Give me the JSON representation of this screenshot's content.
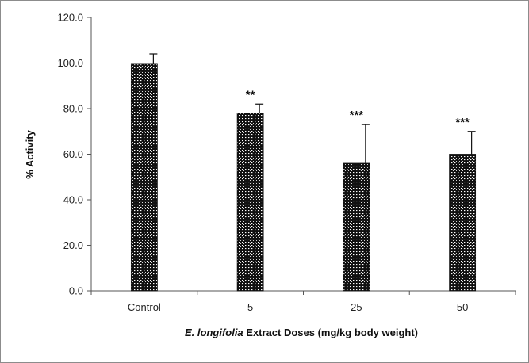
{
  "chart_data": {
    "type": "bar",
    "title": "",
    "xlabel_italic": "E. longifolia",
    "xlabel_rest": " Extract Doses (mg/kg body weight)",
    "ylabel": "% Activity",
    "categories": [
      "Control",
      "5",
      "25",
      "50"
    ],
    "values": [
      99.5,
      78.0,
      56.0,
      60.0
    ],
    "error_upper": [
      4.5,
      4.0,
      17.0,
      10.0
    ],
    "annotations": [
      "",
      "**",
      "***",
      "***"
    ],
    "ylim": [
      0,
      120
    ],
    "yticks": [
      0,
      20,
      40,
      60,
      80,
      100,
      120
    ],
    "ytick_labels": [
      "0.0",
      "20.0",
      "40.0",
      "60.0",
      "80.0",
      "100.0",
      "120.0"
    ],
    "grid": false,
    "bar_fill": "dark dotted pattern",
    "colors": {
      "bar": "#111111",
      "bar_dots": "#ffffff",
      "axis": "#555555"
    }
  }
}
